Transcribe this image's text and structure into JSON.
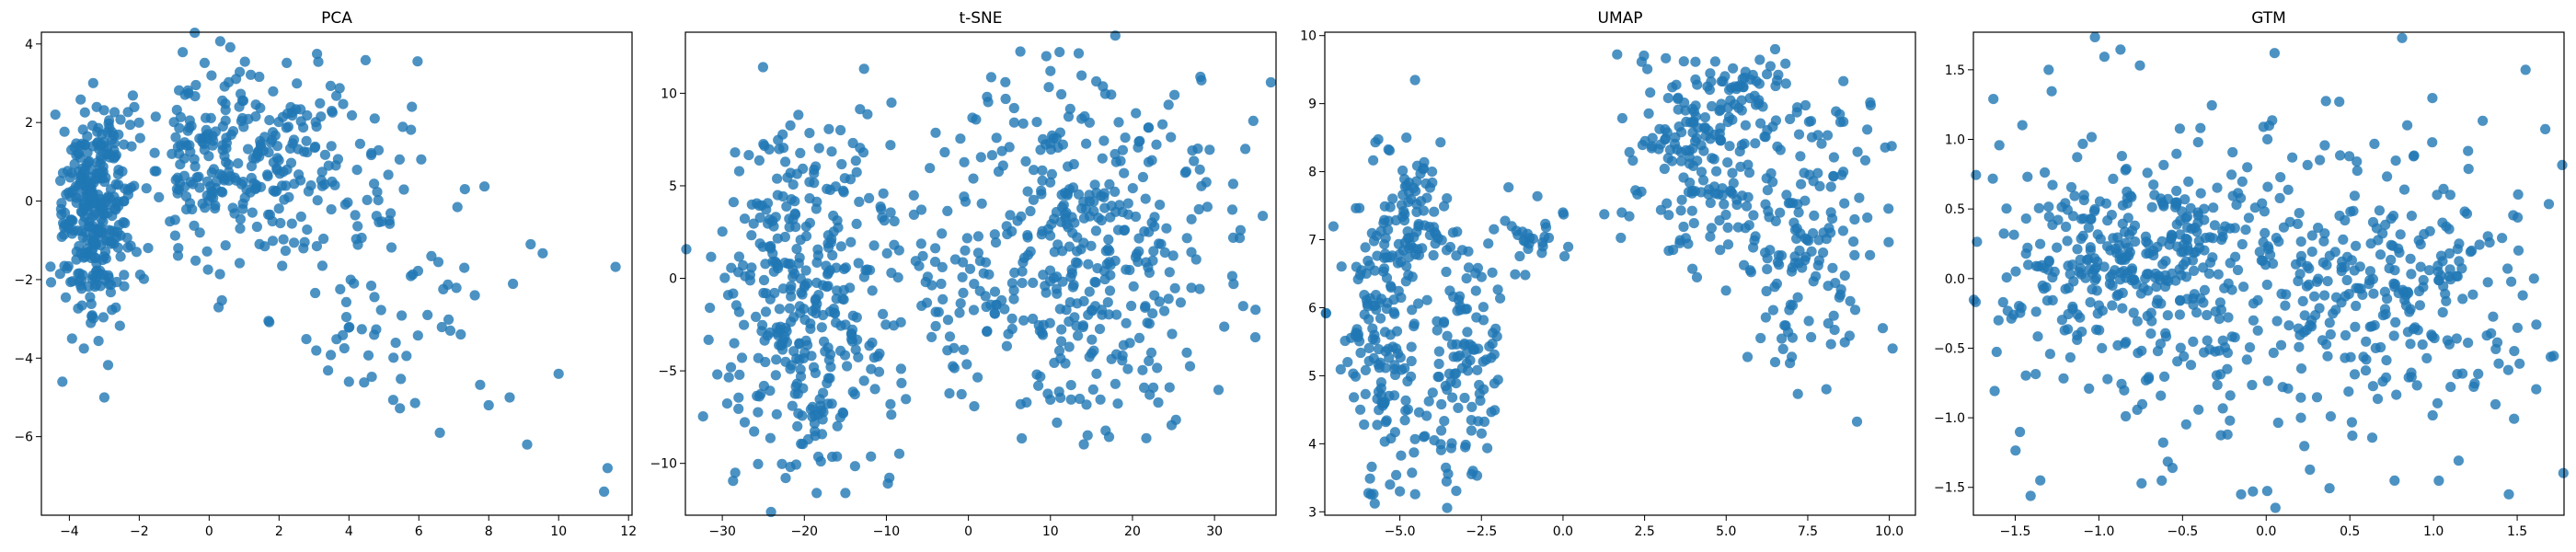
{
  "figure": {
    "accent_color": "#1f77b4"
  },
  "chart_data": [
    {
      "type": "scatter",
      "title": "PCA",
      "xlabel": "",
      "ylabel": "",
      "xlim": [
        -4.8,
        12.1
      ],
      "ylim": [
        -8.0,
        4.3
      ],
      "xticks": [
        -4,
        -2,
        0,
        2,
        4,
        6,
        8,
        10,
        12
      ],
      "yticks": [
        -6,
        -4,
        -2,
        0,
        2,
        4
      ],
      "grid": false,
      "legend": "none",
      "color": "#1f77b4",
      "clusters": [
        {
          "cx": -3.3,
          "cy": -0.3,
          "sx": 0.45,
          "sy": 1.4,
          "n": 300
        },
        {
          "cx": 1.0,
          "cy": 1.0,
          "sx": 1.9,
          "sy": 1.2,
          "n": 320
        },
        {
          "cx": 5.0,
          "cy": -2.5,
          "sx": 2.0,
          "sy": 1.4,
          "n": 70
        }
      ],
      "points": [
        [
          11.4,
          -6.8
        ],
        [
          11.3,
          -7.4
        ],
        [
          10.0,
          -4.4
        ],
        [
          9.1,
          -6.2
        ],
        [
          8.6,
          -5.0
        ],
        [
          8.0,
          -5.2
        ],
        [
          6.6,
          -5.9
        ],
        [
          9.2,
          -1.1
        ],
        [
          7.6,
          -2.4
        ],
        [
          7.3,
          -1.7
        ],
        [
          6.9,
          -3.3
        ],
        [
          4.0,
          -4.6
        ],
        [
          -3.0,
          -5.0
        ],
        [
          -4.2,
          -4.6
        ],
        [
          5.8,
          2.4
        ]
      ]
    },
    {
      "type": "scatter",
      "title": "t-SNE",
      "xlabel": "",
      "ylabel": "",
      "xlim": [
        -34.5,
        37.5
      ],
      "ylim": [
        -12.8,
        13.3
      ],
      "xticks": [
        -30,
        -20,
        -10,
        0,
        10,
        20,
        30
      ],
      "yticks": [
        -10,
        -5,
        0,
        5,
        10
      ],
      "grid": false,
      "legend": "none",
      "color": "#1f77b4",
      "clusters": [
        {
          "cx": -20.0,
          "cy": -1.5,
          "sx": 5.2,
          "sy": 5.0,
          "n": 370
        },
        {
          "cx": 14.0,
          "cy": 1.5,
          "sx": 9.0,
          "sy": 4.6,
          "n": 420
        },
        {
          "cx": -4.0,
          "cy": 0.5,
          "sx": 3.5,
          "sy": 2.2,
          "n": 30
        }
      ],
      "points": [
        [
          9.5,
          12.0
        ],
        [
          10.0,
          11.2
        ],
        [
          4.5,
          10.6
        ],
        [
          -9.5,
          7.2
        ],
        [
          -12.8,
          6.8
        ],
        [
          -18.5,
          -11.6
        ],
        [
          -15.0,
          -11.6
        ],
        [
          33.5,
          -1.5
        ],
        [
          35.0,
          -1.7
        ],
        [
          -9.5,
          -6.8
        ]
      ]
    },
    {
      "type": "scatter",
      "title": "UMAP",
      "xlabel": "",
      "ylabel": "",
      "xlim": [
        -7.3,
        10.8
      ],
      "ylim": [
        2.95,
        10.05
      ],
      "xticks": [
        -5.0,
        -2.5,
        0.0,
        2.5,
        5.0,
        7.5,
        10.0
      ],
      "yticks": [
        3,
        4,
        5,
        6,
        7,
        8,
        9,
        10
      ],
      "grid": false,
      "legend": "none",
      "color": "#1f77b4",
      "clusters": [
        {
          "cx": -5.5,
          "cy": 5.5,
          "sx": 0.6,
          "sy": 1.2,
          "n": 170
        },
        {
          "cx": -3.0,
          "cy": 5.2,
          "sx": 0.7,
          "sy": 0.9,
          "n": 120
        },
        {
          "cx": -4.6,
          "cy": 7.4,
          "sx": 0.5,
          "sy": 0.6,
          "n": 60
        },
        {
          "cx": -1.0,
          "cy": 7.0,
          "sx": 0.6,
          "sy": 0.25,
          "n": 25
        },
        {
          "cx": 4.2,
          "cy": 8.2,
          "sx": 1.1,
          "sy": 0.8,
          "n": 170
        },
        {
          "cx": 7.5,
          "cy": 7.2,
          "sx": 1.1,
          "sy": 1.0,
          "n": 150
        },
        {
          "cx": 5.5,
          "cy": 9.2,
          "sx": 0.7,
          "sy": 0.3,
          "n": 40
        }
      ],
      "points": [
        [
          -5.0,
          3.3
        ],
        [
          -5.3,
          3.4
        ],
        [
          -4.8,
          8.5
        ],
        [
          0.0,
          7.4
        ],
        [
          6.5,
          9.8
        ],
        [
          10.1,
          5.4
        ],
        [
          9.8,
          5.7
        ],
        [
          -6.6,
          5.2
        ],
        [
          6.5,
          5.2
        ],
        [
          1.8,
          7.4
        ]
      ]
    },
    {
      "type": "scatter",
      "title": "GTM",
      "xlabel": "",
      "ylabel": "",
      "xlim": [
        -1.75,
        1.78
      ],
      "ylim": [
        -1.7,
        1.77
      ],
      "xticks": [
        -1.5,
        -1.0,
        -0.5,
        0.0,
        0.5,
        1.0,
        1.5
      ],
      "yticks": [
        -1.5,
        -1.0,
        -0.5,
        0.0,
        0.5,
        1.0,
        1.5
      ],
      "grid": false,
      "legend": "none",
      "color": "#1f77b4",
      "clusters": [
        {
          "cx": -0.8,
          "cy": 0.1,
          "sx": 0.4,
          "sy": 0.35,
          "n": 300
        },
        {
          "cx": 0.7,
          "cy": 0.0,
          "sx": 0.45,
          "sy": 0.4,
          "n": 200
        },
        {
          "cx": 0.0,
          "cy": 0.0,
          "sx": 0.95,
          "sy": 0.95,
          "n": 280
        }
      ],
      "points": [
        [
          0.05,
          1.62
        ],
        [
          1.6,
          0.0
        ],
        [
          -1.6,
          -0.3
        ],
        [
          -0.15,
          -1.55
        ],
        [
          1.45,
          -1.55
        ],
        [
          -1.35,
          -1.45
        ],
        [
          1.55,
          1.5
        ],
        [
          -1.3,
          1.5
        ]
      ]
    }
  ]
}
